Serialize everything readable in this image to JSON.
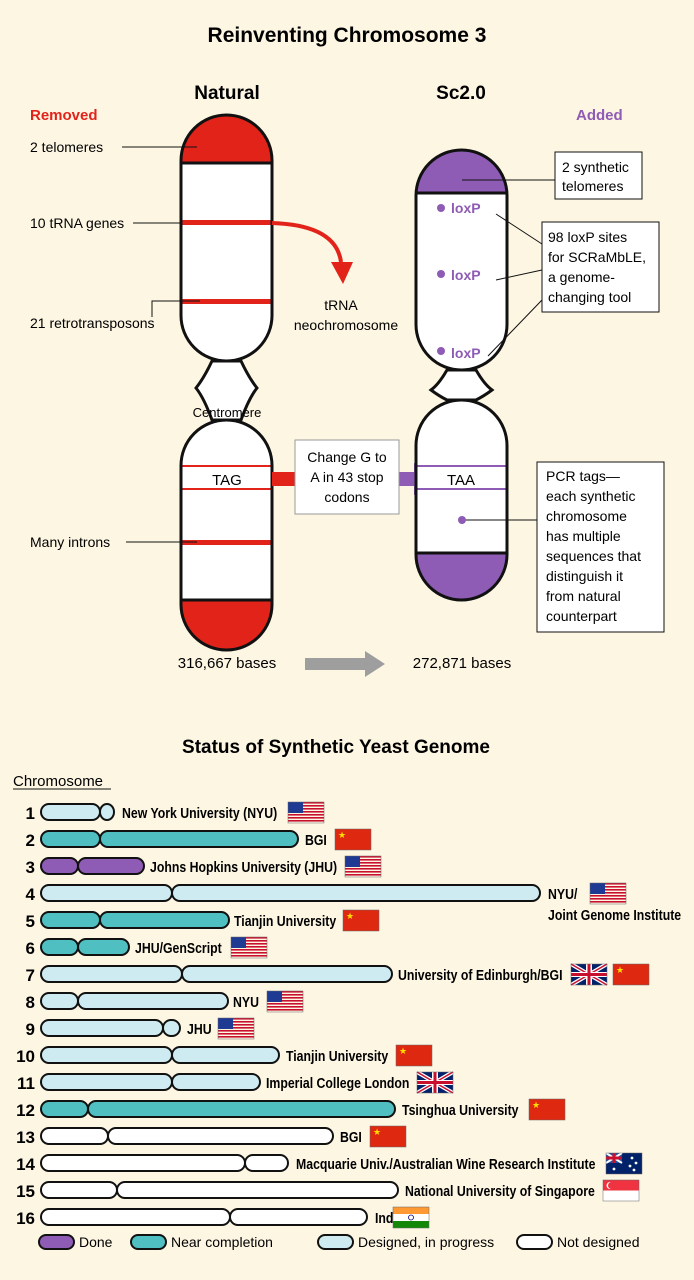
{
  "top": {
    "title": "Reinventing Chromosome 3",
    "natural_label": "Natural",
    "sc_label": "Sc2.0",
    "removed_label": "Removed",
    "added_label": "Added",
    "removed_items": [
      "2 telomeres",
      "10 tRNA genes",
      "21 retrotransposons",
      "Many introns"
    ],
    "trna_label": [
      "tRNA",
      "neochromosome"
    ],
    "centromere_label": "Centromere",
    "tag_label": "TAG",
    "taa_label": "TAA",
    "change_box": [
      "Change G to",
      "A in 43 stop",
      "codons"
    ],
    "synthetic_telomeres": [
      "2 synthetic",
      "telomeres"
    ],
    "loxp_label": "loxP",
    "loxp_box": [
      "98 loxP sites",
      "for SCRaMbLE,",
      "a genome-",
      "changing tool"
    ],
    "pcr_box": [
      "PCR tags—",
      "each synthetic",
      "chromosome",
      "has multiple",
      "sequences that",
      "distinguish it",
      "from natural",
      "counterpart"
    ],
    "natural_bases": "316,667 bases",
    "sc_bases": "272,871 bases"
  },
  "status": {
    "title": "Status of Synthetic Yeast Genome",
    "chromosome_header": "Chromosome",
    "colors": {
      "done": "#8e5bb5",
      "near": "#4fbfc2",
      "designed": "#cdebf0",
      "not": "#ffffff"
    },
    "rows": [
      {
        "num": "1",
        "status": "designed",
        "lab": "New York University (NYU)",
        "flags": [
          "us"
        ]
      },
      {
        "num": "2",
        "status": "near",
        "lab": "BGI",
        "flags": [
          "cn"
        ]
      },
      {
        "num": "3",
        "status": "done",
        "lab": "Johns Hopkins University (JHU)",
        "flags": [
          "us"
        ]
      },
      {
        "num": "4",
        "status": "designed",
        "lab": "NYU/",
        "lab2": "Joint Genome Institute",
        "flags": [
          "us"
        ]
      },
      {
        "num": "5",
        "status": "near",
        "lab": "Tianjin University",
        "flags": [
          "cn"
        ]
      },
      {
        "num": "6",
        "status": "near",
        "lab": "JHU/GenScript",
        "flags": [
          "us"
        ]
      },
      {
        "num": "7",
        "status": "designed",
        "lab": "University of Edinburgh/BGI",
        "flags": [
          "uk",
          "cn"
        ]
      },
      {
        "num": "8",
        "status": "designed",
        "lab": "NYU",
        "flags": [
          "us"
        ]
      },
      {
        "num": "9",
        "status": "designed",
        "lab": "JHU",
        "flags": [
          "us"
        ]
      },
      {
        "num": "10",
        "status": "designed",
        "lab": "Tianjin University",
        "flags": [
          "cn"
        ]
      },
      {
        "num": "11",
        "status": "designed",
        "lab": "Imperial College London",
        "flags": [
          "uk"
        ]
      },
      {
        "num": "12",
        "status": "near",
        "lab": "Tsinghua University",
        "flags": [
          "cn"
        ]
      },
      {
        "num": "13",
        "status": "not",
        "lab": "BGI",
        "flags": [
          "cn"
        ]
      },
      {
        "num": "14",
        "status": "not",
        "lab": "Macquarie Univ./Australian Wine Research Institute",
        "flags": [
          "au"
        ]
      },
      {
        "num": "15",
        "status": "not",
        "lab": "National University of Singapore",
        "flags": [
          "sg"
        ]
      },
      {
        "num": "16",
        "status": "not",
        "lab": "India?",
        "flags": [
          "in"
        ]
      }
    ],
    "legend": [
      {
        "status": "done",
        "label": "Done"
      },
      {
        "status": "near",
        "label": "Near completion"
      },
      {
        "status": "designed",
        "label": "Designed, in progress"
      },
      {
        "status": "not",
        "label": "Not designed"
      }
    ]
  }
}
